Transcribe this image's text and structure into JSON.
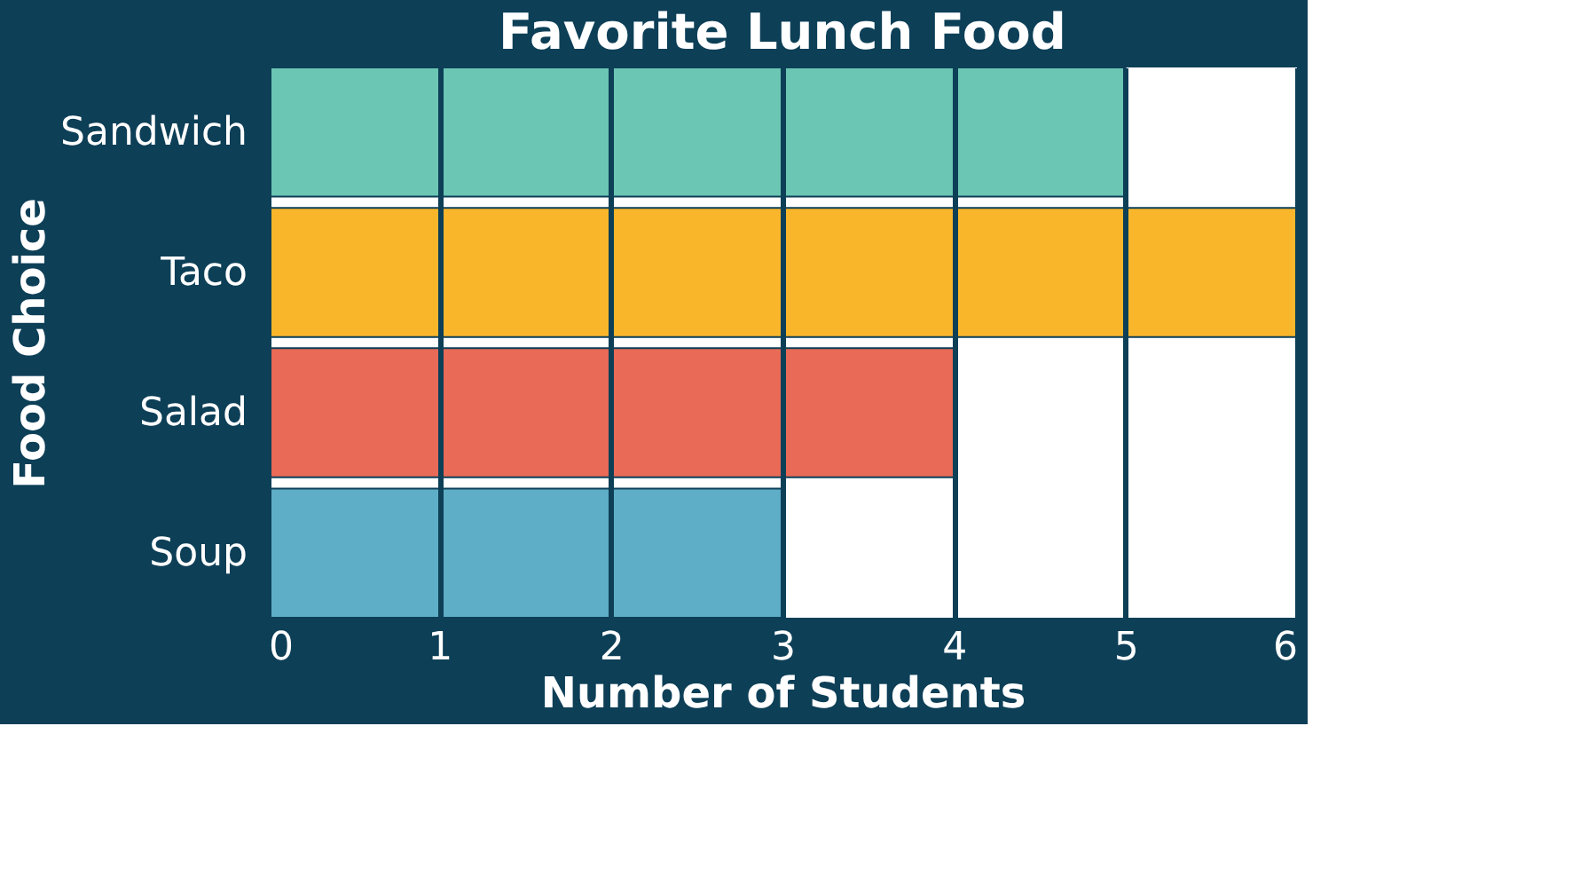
{
  "chart_data": {
    "type": "bar",
    "orientation": "horizontal",
    "title": "Favorite Lunch Food",
    "xlabel": "Number of Students",
    "ylabel": "Food Choice",
    "categories": [
      "Sandwich",
      "Taco",
      "Salad",
      "Soup"
    ],
    "values": [
      5,
      6,
      4,
      3
    ],
    "colors": [
      "#6bc6b4",
      "#f9b62b",
      "#e86a57",
      "#5faec7"
    ],
    "xlim": [
      0,
      6
    ],
    "xticks": [
      0,
      1,
      2,
      3,
      4,
      5,
      6
    ],
    "grid": "x"
  }
}
